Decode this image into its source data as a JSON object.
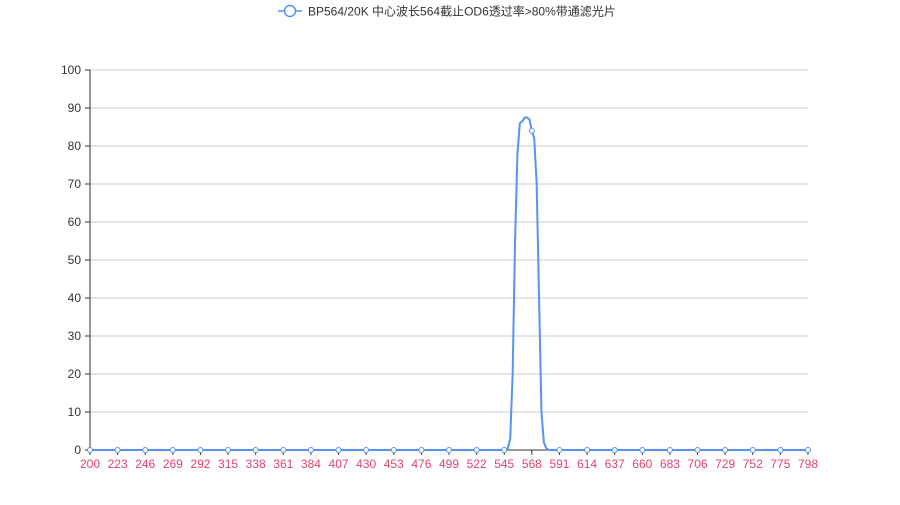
{
  "chart_data": {
    "type": "line",
    "title": "",
    "xlabel": "",
    "ylabel": "",
    "legend": {
      "position": "top-center",
      "entries": [
        "BP564/20K 中心波长564截止OD6透过率>80%带通滤光片"
      ]
    },
    "grid": true,
    "x_ticks": [
      "200",
      "223",
      "246",
      "269",
      "292",
      "315",
      "338",
      "361",
      "384",
      "407",
      "430",
      "453",
      "476",
      "499",
      "522",
      "545",
      "568",
      "591",
      "614",
      "637",
      "660",
      "683",
      "706",
      "729",
      "752",
      "775",
      "798"
    ],
    "y_ticks": [
      "0",
      "10",
      "20",
      "30",
      "40",
      "50",
      "60",
      "70",
      "80",
      "90",
      "100"
    ],
    "xlim": [
      200,
      798
    ],
    "ylim": [
      0,
      100
    ],
    "series": [
      {
        "name": "BP564/20K 中心波长564截止OD6透过率>80%带通滤光片",
        "color": "#5793f3",
        "marker": "hollow-circle",
        "x": [
          200,
          223,
          246,
          269,
          292,
          315,
          338,
          361,
          384,
          407,
          430,
          453,
          476,
          499,
          522,
          545,
          548,
          550,
          552,
          554,
          556,
          558,
          560,
          562,
          564,
          566,
          568,
          570,
          572,
          574,
          576,
          578,
          580,
          582,
          591,
          614,
          637,
          660,
          683,
          706,
          729,
          752,
          775,
          798
        ],
        "y": [
          0,
          0,
          0,
          0,
          0,
          0,
          0,
          0,
          0,
          0,
          0,
          0,
          0,
          0,
          0,
          0,
          0.5,
          3,
          20,
          55,
          78,
          86,
          86.5,
          87.5,
          87.5,
          87,
          84,
          82,
          70,
          40,
          10,
          2,
          0.5,
          0,
          0,
          0,
          0,
          0,
          0,
          0,
          0,
          0,
          0,
          0
        ]
      }
    ],
    "colors": {
      "axis_label_x": "#e0436b",
      "axis_label_y": "#333333",
      "axis_line": "#333333",
      "grid_line": "#cccccc",
      "legend_text": "#333333"
    }
  }
}
